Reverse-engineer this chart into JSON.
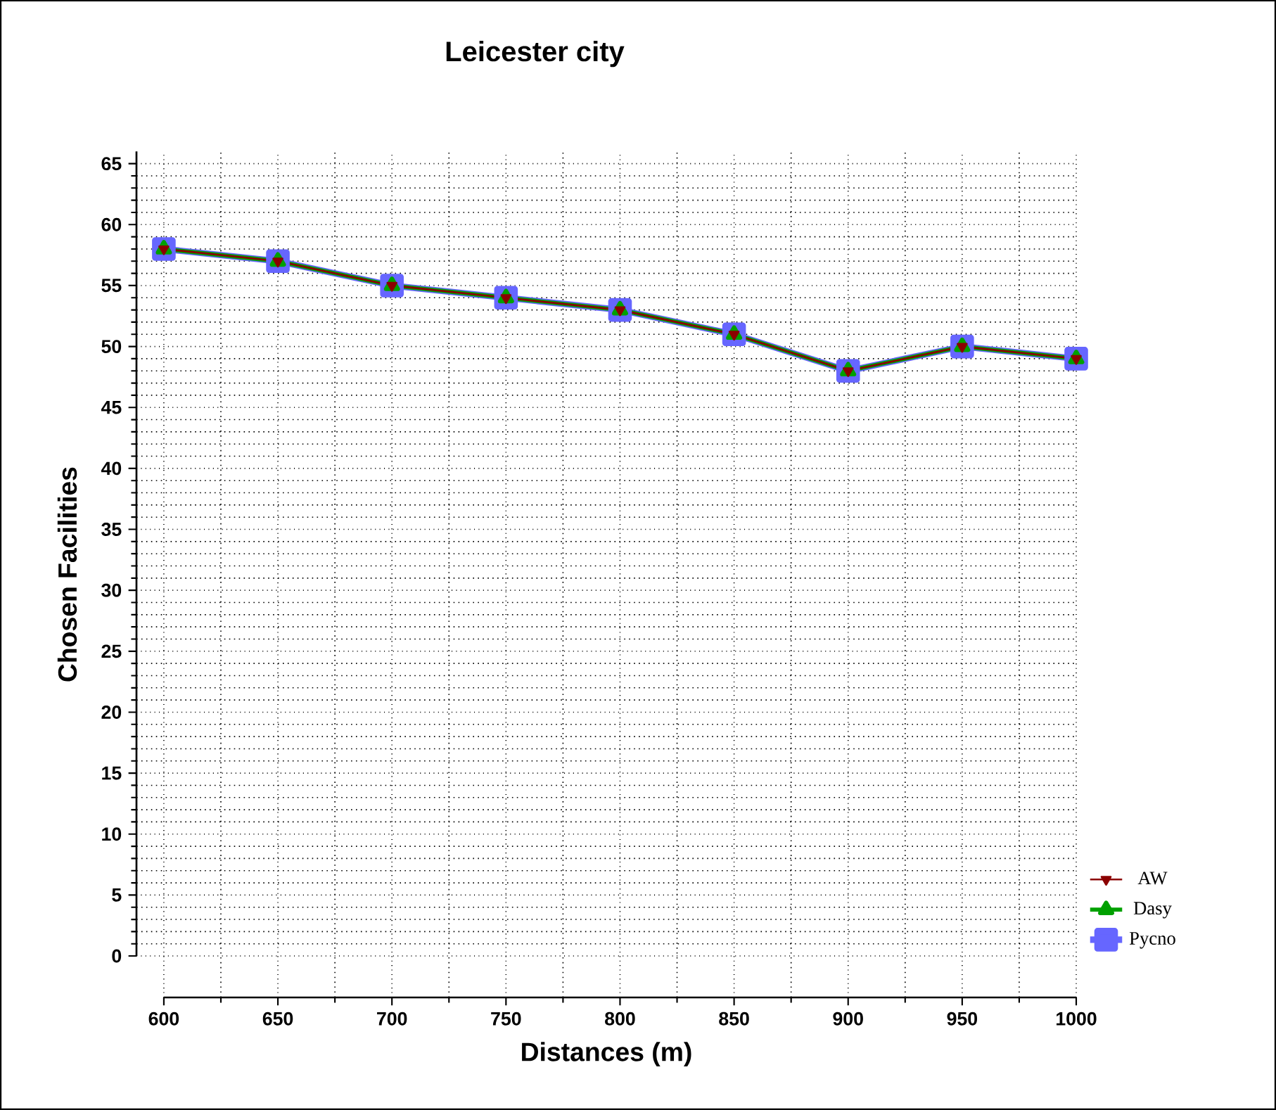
{
  "chart_data": {
    "type": "line",
    "title": "Leicester city",
    "xlabel": "Distances (m)",
    "ylabel": "Chosen Facilities",
    "x": [
      600,
      650,
      700,
      750,
      800,
      850,
      900,
      950,
      1000
    ],
    "series": [
      {
        "name": "AW",
        "color": "#8b0000",
        "marker": "triangle-down",
        "values": [
          58,
          57,
          55,
          54,
          53,
          51,
          48,
          50,
          49
        ]
      },
      {
        "name": "Dasy",
        "color": "#00a000",
        "marker": "triangle",
        "values": [
          58,
          57,
          55,
          54,
          53,
          51,
          48,
          50,
          49
        ]
      },
      {
        "name": "Pycno",
        "color": "#6666ff",
        "marker": "square",
        "values": [
          58,
          57,
          55,
          54,
          53,
          51,
          48,
          50,
          49
        ]
      }
    ],
    "xlim": [
      588,
      1000
    ],
    "ylim": [
      -3.4,
      66
    ],
    "xticks": [
      600,
      650,
      700,
      750,
      800,
      850,
      900,
      950,
      1000
    ],
    "yticks": [
      0,
      5,
      10,
      15,
      20,
      25,
      30,
      35,
      40,
      45,
      50,
      55,
      60,
      65
    ],
    "grid": true,
    "legend": "right",
    "line_style": "solid"
  }
}
